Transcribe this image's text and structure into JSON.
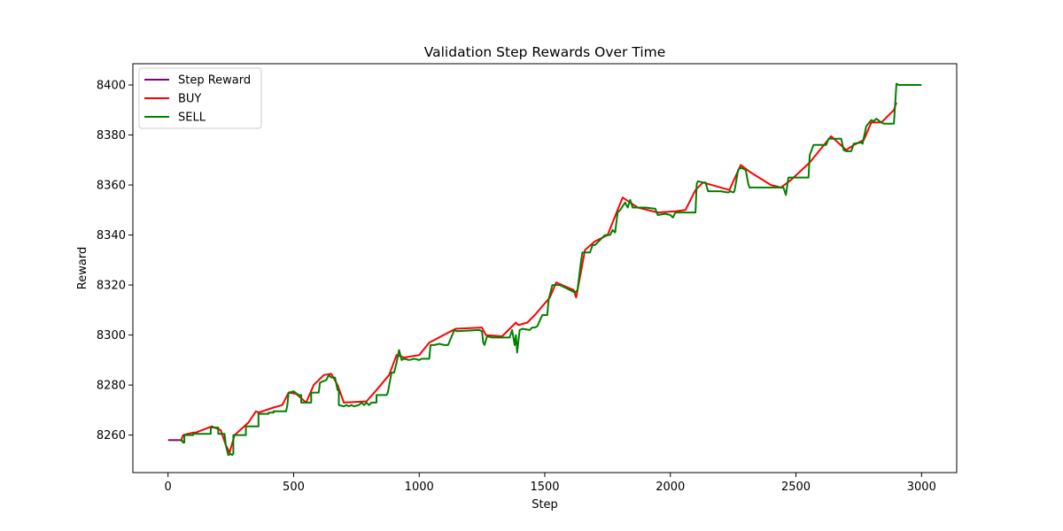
{
  "chart_data": {
    "type": "line",
    "title": "Validation Step Rewards Over Time",
    "xlabel": "Step",
    "ylabel": "Reward",
    "xlim": [
      -140,
      3140
    ],
    "ylim": [
      8245.0,
      8408.5
    ],
    "xticks": [
      0,
      500,
      1000,
      1500,
      2000,
      2500,
      3000
    ],
    "yticks": [
      8260,
      8280,
      8300,
      8320,
      8340,
      8360,
      8380,
      8400
    ],
    "grid": false,
    "legend_position": "upper-left",
    "series": [
      {
        "name": "Step Reward",
        "color": "#800080",
        "x": [
          0,
          45
        ],
        "y": [
          8258.0,
          8258.0
        ]
      },
      {
        "name": "BUY",
        "color": "#ff0000",
        "x": [
          50,
          60,
          100,
          110,
          175,
          185,
          210,
          230,
          245,
          265,
          320,
          350,
          360,
          420,
          455,
          480,
          510,
          550,
          580,
          620,
          650,
          675,
          700,
          790,
          830,
          880,
          910,
          940,
          1000,
          1040,
          1145,
          1250,
          1265,
          1330,
          1385,
          1395,
          1430,
          1460,
          1520,
          1545,
          1615,
          1625,
          1660,
          1700,
          1750,
          1790,
          1810,
          1840,
          1870,
          1950,
          2020,
          2060,
          2100,
          2130,
          2235,
          2280,
          2320,
          2400,
          2440,
          2480,
          2555,
          2640,
          2700,
          2730,
          2770,
          2800,
          2840,
          2890,
          2900
        ],
        "y": [
          8257.5,
          8260.0,
          8261.0,
          8261.0,
          8263.5,
          8263.0,
          8262.0,
          8256.0,
          8253.0,
          8260.0,
          8265.0,
          8269.5,
          8269.0,
          8271.0,
          8272.0,
          8277.0,
          8276.5,
          8273.0,
          8280.0,
          8284.0,
          8284.5,
          8280.0,
          8273.0,
          8273.5,
          8278.0,
          8284.0,
          8292.0,
          8291.0,
          8292.0,
          8297.0,
          8302.5,
          8303.0,
          8300.0,
          8299.5,
          8305.0,
          8304.0,
          8305.0,
          8308.0,
          8315.0,
          8321.0,
          8318.0,
          8315.0,
          8334.0,
          8337.5,
          8340.0,
          8350.0,
          8355.0,
          8353.0,
          8351.0,
          8349.0,
          8349.5,
          8350.0,
          8358.0,
          8361.0,
          8358.0,
          8368.0,
          8365.0,
          8360.0,
          8359.0,
          8362.0,
          8369.0,
          8379.5,
          8374.0,
          8376.0,
          8378.0,
          8385.0,
          8385.0,
          8390.0,
          8393.0
        ]
      },
      {
        "name": "SELL",
        "color": "#008000",
        "x": [
          45,
          55,
          60,
          65,
          65,
          100,
          100,
          170,
          170,
          200,
          200,
          225,
          230,
          235,
          240,
          250,
          255,
          260,
          260,
          310,
          310,
          360,
          360,
          400,
          400,
          420,
          420,
          470,
          475,
          480,
          500,
          520,
          530,
          530,
          570,
          570,
          600,
          605,
          630,
          640,
          650,
          665,
          675,
          680,
          680,
          700,
          710,
          720,
          730,
          740,
          760,
          770,
          780,
          790,
          800,
          810,
          830,
          830,
          870,
          875,
          890,
          900,
          910,
          920,
          930,
          940,
          960,
          980,
          1000,
          1010,
          1010,
          1040,
          1045,
          1060,
          1080,
          1100,
          1115,
          1140,
          1150,
          1240,
          1250,
          1255,
          1260,
          1270,
          1290,
          1330,
          1360,
          1370,
          1380,
          1385,
          1390,
          1400,
          1410,
          1440,
          1450,
          1460,
          1470,
          1490,
          1500,
          1510,
          1515,
          1530,
          1560,
          1580,
          1600,
          1620,
          1630,
          1640,
          1645,
          1650,
          1660,
          1680,
          1690,
          1700,
          1720,
          1740,
          1760,
          1770,
          1780,
          1790,
          1800,
          1820,
          1830,
          1840,
          1850,
          1880,
          1900,
          1940,
          1950,
          1980,
          2000,
          2010,
          2020,
          2060,
          2080,
          2100,
          2105,
          2110,
          2130,
          2140,
          2150,
          2200,
          2230,
          2240,
          2250,
          2255,
          2270,
          2280,
          2300,
          2310,
          2315,
          2400,
          2440,
          2450,
          2460,
          2470,
          2480,
          2500,
          2550,
          2555,
          2570,
          2580,
          2620,
          2630,
          2680,
          2690,
          2700,
          2720,
          2730,
          2760,
          2765,
          2780,
          2800,
          2810,
          2820,
          2840,
          2850,
          2870,
          2890,
          2900,
          2910,
          2950,
          3000
        ],
        "y": [
          8258.0,
          8258.0,
          8257.0,
          8257.0,
          8260.0,
          8260.0,
          8260.5,
          8260.5,
          8263.0,
          8263.0,
          8260.5,
          8260.5,
          8256.0,
          8254.0,
          8252.0,
          8252.5,
          8252.0,
          8252.5,
          8260.0,
          8260.0,
          8263.5,
          8263.5,
          8268.5,
          8268.5,
          8269.0,
          8269.0,
          8269.5,
          8269.5,
          8272.0,
          8277.0,
          8277.5,
          8276.0,
          8276.0,
          8273.0,
          8273.0,
          8277.0,
          8277.0,
          8281.0,
          8282.0,
          8284.0,
          8283.0,
          8283.0,
          8278.0,
          8278.0,
          8272.0,
          8271.5,
          8272.0,
          8271.5,
          8272.0,
          8271.5,
          8272.0,
          8273.0,
          8272.0,
          8273.0,
          8272.0,
          8273.0,
          8273.0,
          8276.0,
          8276.0,
          8277.0,
          8285.0,
          8285.0,
          8289.0,
          8294.0,
          8290.0,
          8290.5,
          8290.0,
          8290.5,
          8290.0,
          8290.5,
          8290.5,
          8290.5,
          8296.0,
          8296.0,
          8296.5,
          8296.0,
          8296.0,
          8302.0,
          8301.5,
          8302.0,
          8301.5,
          8297.0,
          8296.0,
          8299.5,
          8299.0,
          8299.0,
          8299.0,
          8302.0,
          8296.0,
          8300.0,
          8293.0,
          8302.0,
          8302.5,
          8302.0,
          8303.0,
          8303.0,
          8303.5,
          8308.0,
          8308.0,
          8308.0,
          8314.0,
          8320.0,
          8320.0,
          8319.0,
          8318.0,
          8317.0,
          8318.0,
          8326.0,
          8330.0,
          8333.0,
          8333.0,
          8333.0,
          8336.0,
          8336.0,
          8338.0,
          8340.0,
          8340.0,
          8342.0,
          8341.0,
          8349.0,
          8350.0,
          8353.0,
          8351.0,
          8354.0,
          8351.0,
          8351.0,
          8351.0,
          8350.5,
          8348.0,
          8348.5,
          8348.0,
          8347.0,
          8349.0,
          8349.0,
          8349.0,
          8349.0,
          8360.5,
          8361.5,
          8361.0,
          8361.0,
          8357.5,
          8357.5,
          8357.0,
          8357.5,
          8357.0,
          8357.5,
          8366.0,
          8367.0,
          8366.0,
          8360.5,
          8359.0,
          8359.0,
          8359.0,
          8359.0,
          8356.0,
          8363.0,
          8363.0,
          8363.0,
          8363.0,
          8372.0,
          8376.0,
          8376.0,
          8376.0,
          8378.5,
          8378.5,
          8374.0,
          8373.5,
          8373.5,
          8376.5,
          8377.0,
          8376.5,
          8383.5,
          8386.0,
          8385.5,
          8386.5,
          8385.0,
          8384.5,
          8384.5,
          8384.5,
          8400.5,
          8400.0,
          8400.0,
          8400.0
        ]
      }
    ]
  }
}
